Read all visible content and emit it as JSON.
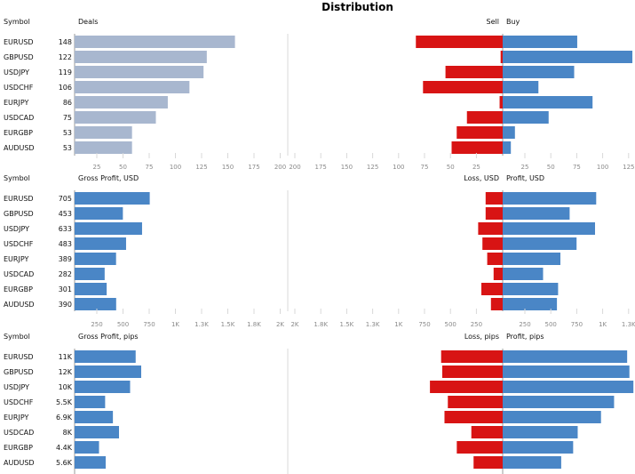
{
  "title": "Distribution",
  "colors": {
    "deals": "#a8b7cf",
    "buy": "#4a86c6",
    "sell": "#d81414",
    "grid": "#d8d8d8",
    "axis": "#9a9a9a"
  },
  "chart_data": [
    {
      "type": "bar",
      "symbol_header": "Symbol",
      "left_label": "Deals",
      "right_neg_label": "Sell",
      "right_pos_label": "Buy",
      "categories": [
        "EURUSD",
        "GBPUSD",
        "USDJPY",
        "USDCHF",
        "EURJPY",
        "USDCAD",
        "EURGBP",
        "AUDUSD"
      ],
      "value_labels": [
        "148",
        "122",
        "119",
        "106",
        "86",
        "75",
        "53",
        "53"
      ],
      "left_values": [
        148,
        122,
        119,
        106,
        86,
        75,
        53,
        53
      ],
      "neg_values": [
        85,
        2,
        56,
        78,
        3,
        35,
        45,
        50
      ],
      "pos_values": [
        73,
        127,
        70,
        35,
        88,
        45,
        12,
        8
      ],
      "left_ticks": [
        "25",
        "50",
        "75",
        "100",
        "125",
        "150",
        "175",
        "200"
      ],
      "right_neg_ticks": [
        "200",
        "175",
        "150",
        "125",
        "100",
        "75",
        "50",
        "25"
      ],
      "right_pos_ticks": [
        "25",
        "50",
        "75",
        "100",
        "125"
      ]
    },
    {
      "type": "bar",
      "symbol_header": "Symbol",
      "left_label": "Gross Profit, USD",
      "right_neg_label": "Loss, USD",
      "right_pos_label": "Profit, USD",
      "categories": [
        "EURUSD",
        "GBPUSD",
        "USDJPY",
        "USDCHF",
        "EURJPY",
        "USDCAD",
        "EURGBP",
        "AUDUSD"
      ],
      "value_labels": [
        "705",
        "453",
        "633",
        "483",
        "389",
        "282",
        "301",
        "390"
      ],
      "left_values": [
        705,
        453,
        633,
        483,
        389,
        282,
        301,
        390
      ],
      "neg_values": [
        160,
        160,
        230,
        190,
        145,
        85,
        200,
        110
      ],
      "pos_values": [
        810,
        580,
        800,
        640,
        500,
        350,
        480,
        470
      ],
      "left_ticks": [
        "250",
        "500",
        "750",
        "1K",
        "1.3K",
        "1.5K",
        "1.8K",
        "2K"
      ],
      "right_neg_ticks": [
        "2K",
        "1.8K",
        "1.5K",
        "1.3K",
        "1K",
        "750",
        "500",
        "250"
      ],
      "right_pos_ticks": [
        "250",
        "500",
        "750",
        "1K",
        "1.3K"
      ]
    },
    {
      "type": "bar",
      "symbol_header": "Symbol",
      "left_label": "Gross Profit, pips",
      "right_neg_label": "Loss, pips",
      "right_pos_label": "Profit, pips",
      "categories": [
        "EURUSD",
        "GBPUSD",
        "USDJPY",
        "USDCHF",
        "EURJPY",
        "USDCAD",
        "EURGBP",
        "AUDUSD"
      ],
      "value_labels": [
        "11K",
        "12K",
        "10K",
        "5.5K",
        "6.9K",
        "8K",
        "4.4K",
        "5.6K"
      ],
      "left_values": [
        11,
        12,
        10,
        5.5,
        6.9,
        8,
        4.4,
        5.6
      ],
      "neg_values": [
        11,
        10.8,
        13,
        9.8,
        10.4,
        5.6,
        8.2,
        5.2
      ],
      "pos_values": [
        21.9,
        22.3,
        23,
        19.6,
        17.3,
        13.2,
        12.4,
        10.3
      ],
      "left_ticks": [],
      "right_neg_ticks": [],
      "right_pos_ticks": []
    }
  ]
}
